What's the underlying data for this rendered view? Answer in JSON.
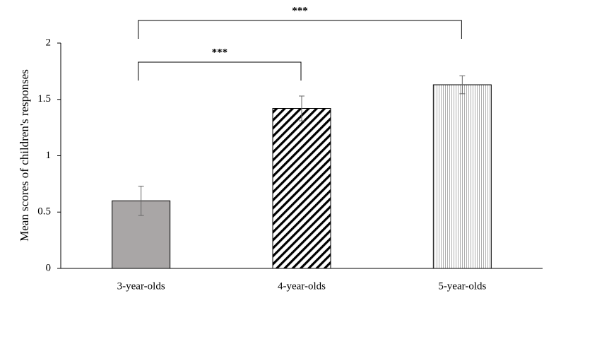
{
  "chart_data": {
    "type": "bar",
    "y_label": "Mean scores of children's responses",
    "categories": [
      "3-year-olds",
      "4-year-olds",
      "5-year-olds"
    ],
    "values": [
      0.6,
      1.42,
      1.63
    ],
    "errors": [
      0.13,
      0.11,
      0.08
    ],
    "colors": [
      "#a9a6a6",
      "#000000",
      "#9a9a9a"
    ],
    "patterns": [
      "solid",
      "diagonal",
      "vertical"
    ],
    "ylim": [
      0,
      2
    ],
    "yticks": [
      0,
      0.5,
      1,
      1.5,
      2
    ],
    "grid": false,
    "annotations": [
      "***",
      "***"
    ]
  }
}
